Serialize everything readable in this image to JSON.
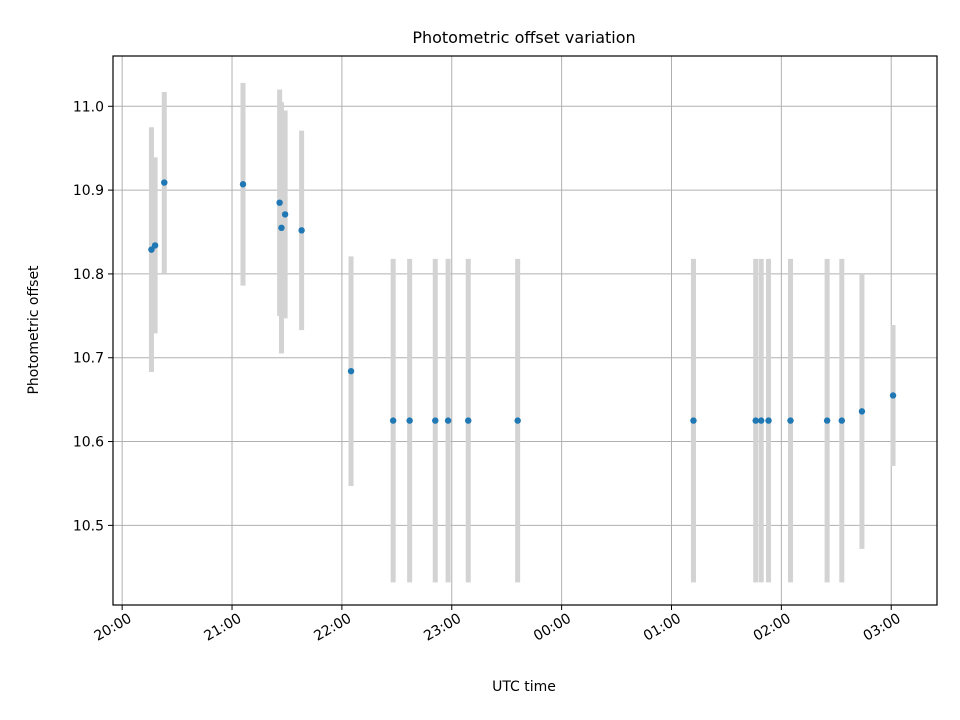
{
  "chart_data": {
    "type": "scatter",
    "title": "Photometric offset variation",
    "xlabel": "UTC time",
    "ylabel": "Photometric offset",
    "x_tick_labels": [
      "20:00",
      "21:00",
      "22:00",
      "23:00",
      "00:00",
      "01:00",
      "02:00",
      "03:00"
    ],
    "y_tick_labels": [
      "10.5",
      "10.6",
      "10.7",
      "10.8",
      "10.9",
      "11.0"
    ],
    "y_ticks": [
      10.5,
      10.6,
      10.7,
      10.8,
      10.9,
      11.0
    ],
    "xlim": [
      "19:55",
      "03:25"
    ],
    "ylim": [
      10.405,
      11.06
    ],
    "grid": true,
    "colors": {
      "points": "#1f77b4",
      "errorbars": "#d3d3d3",
      "grid": "#b0b0b0"
    },
    "points": [
      {
        "time": "20:16",
        "y": 10.829,
        "err": 0.146
      },
      {
        "time": "20:18",
        "y": 10.834,
        "err": 0.105
      },
      {
        "time": "20:23",
        "y": 10.909,
        "err": 0.108
      },
      {
        "time": "21:06",
        "y": 10.907,
        "err": 0.121
      },
      {
        "time": "21:26",
        "y": 10.885,
        "err": 0.135
      },
      {
        "time": "21:27",
        "y": 10.855,
        "err": 0.15
      },
      {
        "time": "21:29",
        "y": 10.871,
        "err": 0.124
      },
      {
        "time": "21:38",
        "y": 10.852,
        "err": 0.119
      },
      {
        "time": "22:05",
        "y": 10.684,
        "err": 0.137
      },
      {
        "time": "22:28",
        "y": 10.625,
        "err": 0.193
      },
      {
        "time": "22:37",
        "y": 10.625,
        "err": 0.193
      },
      {
        "time": "22:51",
        "y": 10.625,
        "err": 0.193
      },
      {
        "time": "22:58",
        "y": 10.625,
        "err": 0.193
      },
      {
        "time": "23:09",
        "y": 10.625,
        "err": 0.193
      },
      {
        "time": "23:36",
        "y": 10.625,
        "err": 0.193
      },
      {
        "time": "01:12",
        "y": 10.625,
        "err": 0.193
      },
      {
        "time": "01:46",
        "y": 10.625,
        "err": 0.193
      },
      {
        "time": "01:49",
        "y": 10.625,
        "err": 0.193
      },
      {
        "time": "01:53",
        "y": 10.625,
        "err": 0.193
      },
      {
        "time": "02:05",
        "y": 10.625,
        "err": 0.193
      },
      {
        "time": "02:25",
        "y": 10.625,
        "err": 0.193
      },
      {
        "time": "02:33",
        "y": 10.625,
        "err": 0.193
      },
      {
        "time": "02:44",
        "y": 10.636,
        "err": 0.164
      },
      {
        "time": "03:01",
        "y": 10.655,
        "err": 0.084
      }
    ]
  }
}
